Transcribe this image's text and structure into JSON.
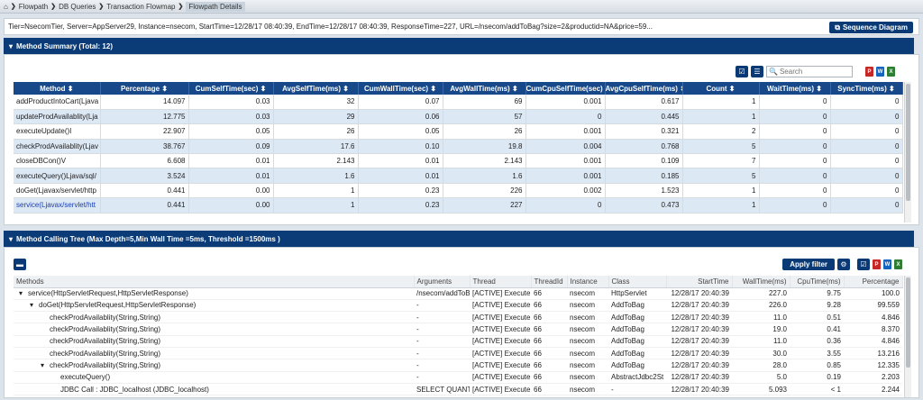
{
  "breadcrumb": {
    "home_icon": "⌂",
    "items": [
      "Flowpath",
      "DB Queries",
      "Transaction Flowmap",
      "Flowpath Details"
    ]
  },
  "info": {
    "text": "Tier=NsecomTier, Server=AppServer29, Instance=nsecom, StartTime=12/28/17 08:40:39, EndTime=12/28/17 08:40:39, ResponseTime=227, URL=/nsecom/addToBag?size=2&productid=NA&price=59...",
    "sequence_button": "Sequence Diagram"
  },
  "summary": {
    "title": "Method Summary (Total: 12)",
    "search_placeholder": "Search",
    "columns": [
      "Method",
      "Percentage",
      "CumSelfTime(sec)",
      "AvgSelfTime(ms)",
      "CumWallTime(sec)",
      "AvgWallTime(ms)",
      "CumCpuSelfTime(sec)",
      "AvgCpuSelfTime(ms)",
      "Count",
      "WaitTime(ms)",
      "SyncTime(ms)"
    ],
    "rows": [
      [
        "addProductIntoCart(Ljava",
        "14.097",
        "0.03",
        "32",
        "0.07",
        "69",
        "0.001",
        "0.617",
        "1",
        "0",
        "0"
      ],
      [
        "updateProdAvailablity(Lja",
        "12.775",
        "0.03",
        "29",
        "0.06",
        "57",
        "0",
        "0.445",
        "1",
        "0",
        "0"
      ],
      [
        "executeUpdate()I",
        "22.907",
        "0.05",
        "26",
        "0.05",
        "26",
        "0.001",
        "0.321",
        "2",
        "0",
        "0"
      ],
      [
        "checkProdAvailablity(Ljav",
        "38.767",
        "0.09",
        "17.6",
        "0.10",
        "19.8",
        "0.004",
        "0.768",
        "5",
        "0",
        "0"
      ],
      [
        "closeDBCon()V",
        "6.608",
        "0.01",
        "2.143",
        "0.01",
        "2.143",
        "0.001",
        "0.109",
        "7",
        "0",
        "0"
      ],
      [
        "executeQuery()Ljava/sql/",
        "3.524",
        "0.01",
        "1.6",
        "0.01",
        "1.6",
        "0.001",
        "0.185",
        "5",
        "0",
        "0"
      ],
      [
        "doGet(Ljavax/servlet/http",
        "0.441",
        "0.00",
        "1",
        "0.23",
        "226",
        "0.002",
        "1.523",
        "1",
        "0",
        "0"
      ],
      [
        "service(Ljavax/servlet/htt",
        "0.441",
        "0.00",
        "1",
        "0.23",
        "227",
        "0",
        "0.473",
        "1",
        "0",
        "0"
      ]
    ]
  },
  "tree": {
    "title": "Method Calling Tree (Max Depth=5,Min Wall Time =5ms, Threshold =1500ms )",
    "apply_label": "Apply filter",
    "columns": [
      "Methods",
      "Arguments",
      "Thread",
      "ThreadId",
      "Instance",
      "Class",
      "StartTime",
      "WallTime(ms)",
      "CpuTime(ms)",
      "Percentage"
    ],
    "rows": [
      {
        "indent": 0,
        "arrow": "▾",
        "method": "service(HttpServletRequest,HttpServletResponse)",
        "args": "/nsecom/addToBag",
        "thread": "[ACTIVE] Execute",
        "tid": "66",
        "inst": "nsecom",
        "cls": "HttpServlet",
        "start": "12/28/17 20:40:39",
        "wall": "227.0",
        "cpu": "9.75",
        "pct": "100.0"
      },
      {
        "indent": 1,
        "arrow": "▾",
        "method": "doGet(HttpServletRequest,HttpServletResponse)",
        "args": "-",
        "thread": "[ACTIVE] Execute",
        "tid": "66",
        "inst": "nsecom",
        "cls": "AddToBag",
        "start": "12/28/17 20:40:39",
        "wall": "226.0",
        "cpu": "9.28",
        "pct": "99.559"
      },
      {
        "indent": 2,
        "arrow": "",
        "method": "checkProdAvailablity(String,String)",
        "args": "-",
        "thread": "[ACTIVE] Execute",
        "tid": "66",
        "inst": "nsecom",
        "cls": "AddToBag",
        "start": "12/28/17 20:40:39",
        "wall": "11.0",
        "cpu": "0.51",
        "pct": "4.846"
      },
      {
        "indent": 2,
        "arrow": "",
        "method": "checkProdAvailablity(String,String)",
        "args": "-",
        "thread": "[ACTIVE] Execute",
        "tid": "66",
        "inst": "nsecom",
        "cls": "AddToBag",
        "start": "12/28/17 20:40:39",
        "wall": "19.0",
        "cpu": "0.41",
        "pct": "8.370"
      },
      {
        "indent": 2,
        "arrow": "",
        "method": "checkProdAvailablity(String,String)",
        "args": "-",
        "thread": "[ACTIVE] Execute",
        "tid": "66",
        "inst": "nsecom",
        "cls": "AddToBag",
        "start": "12/28/17 20:40:39",
        "wall": "11.0",
        "cpu": "0.36",
        "pct": "4.846"
      },
      {
        "indent": 2,
        "arrow": "",
        "method": "checkProdAvailablity(String,String)",
        "args": "-",
        "thread": "[ACTIVE] Execute",
        "tid": "66",
        "inst": "nsecom",
        "cls": "AddToBag",
        "start": "12/28/17 20:40:39",
        "wall": "30.0",
        "cpu": "3.55",
        "pct": "13.216"
      },
      {
        "indent": 2,
        "arrow": "▾",
        "method": "checkProdAvailablity(String,String)",
        "args": "-",
        "thread": "[ACTIVE] Execute",
        "tid": "66",
        "inst": "nsecom",
        "cls": "AddToBag",
        "start": "12/28/17 20:40:39",
        "wall": "28.0",
        "cpu": "0.85",
        "pct": "12.335"
      },
      {
        "indent": 3,
        "arrow": "",
        "method": "executeQuery()",
        "args": "-",
        "thread": "[ACTIVE] Execute",
        "tid": "66",
        "inst": "nsecom",
        "cls": "AbstractJdbc2St",
        "start": "12/28/17 20:40:39",
        "wall": "5.0",
        "cpu": "0.19",
        "pct": "2.203"
      },
      {
        "indent": 3,
        "arrow": "",
        "method": "JDBC Call : JDBC_localhost (JDBC_localhost)",
        "args": "SELECT QUANTITY",
        "thread": "[ACTIVE] Execute",
        "tid": "66",
        "inst": "nsecom",
        "cls": "-",
        "start": "12/28/17 20:40:39",
        "wall": "5.093",
        "cpu": "< 1",
        "pct": "2.244"
      }
    ]
  }
}
